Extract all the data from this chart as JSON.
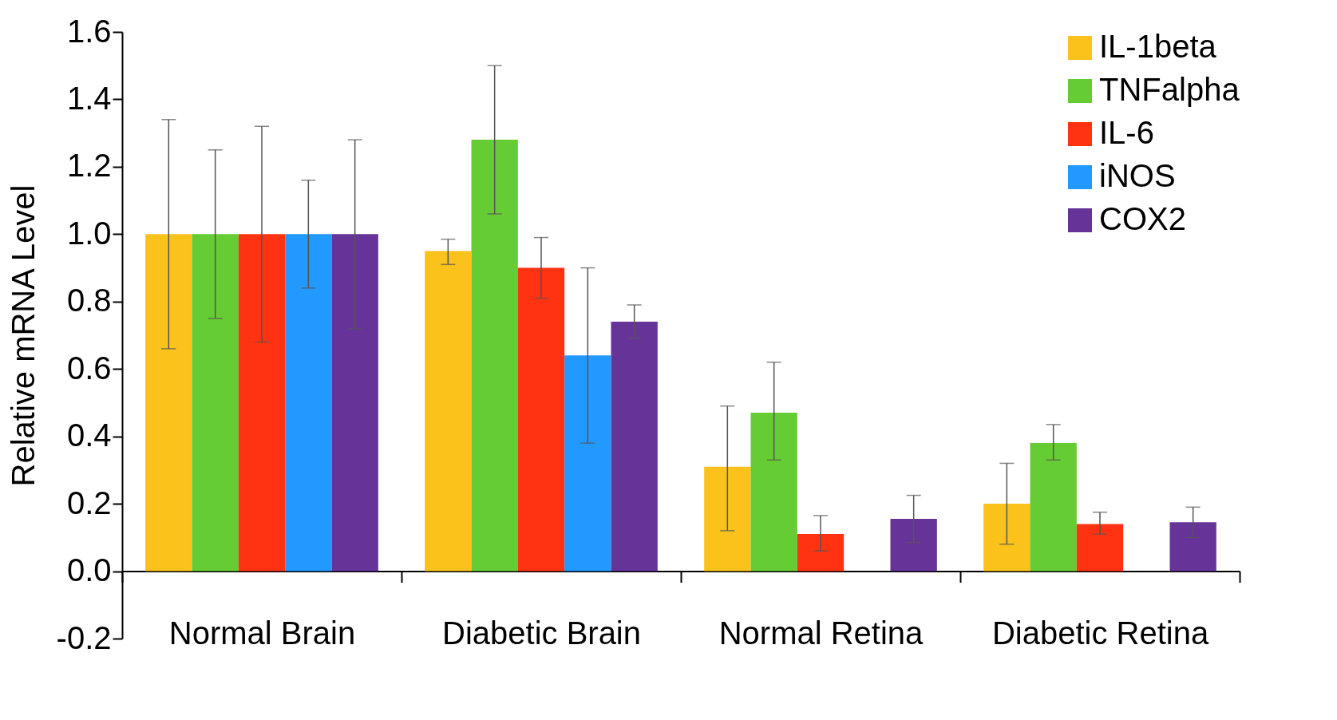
{
  "chart_data": {
    "type": "bar",
    "ylabel": "Relative mRNA Level",
    "categories": [
      "Normal Brain",
      "Diabetic Brain",
      "Normal Retina",
      "Diabetic Retina"
    ],
    "series": [
      {
        "name": "IL-1beta",
        "color": "#fac21a",
        "values": [
          1.0,
          0.95,
          0.31,
          0.2
        ],
        "errors": [
          [
            0.66,
            1.34
          ],
          [
            0.91,
            0.985
          ],
          [
            0.12,
            0.49
          ],
          [
            0.08,
            0.32
          ]
        ]
      },
      {
        "name": "TNFalpha",
        "color": "#66cc33",
        "values": [
          1.0,
          1.28,
          0.47,
          0.38
        ],
        "errors": [
          [
            0.75,
            1.25
          ],
          [
            1.06,
            1.5
          ],
          [
            0.33,
            0.62
          ],
          [
            0.33,
            0.435
          ]
        ]
      },
      {
        "name": "IL-6",
        "color": "#ff3311",
        "values": [
          1.0,
          0.9,
          0.11,
          0.14
        ],
        "errors": [
          [
            0.68,
            1.32
          ],
          [
            0.81,
            0.99
          ],
          [
            0.06,
            0.165
          ],
          [
            0.11,
            0.175
          ]
        ]
      },
      {
        "name": "iNOS",
        "color": "#2299ff",
        "values": [
          1.0,
          0.64,
          0.0,
          0.0
        ],
        "errors": [
          [
            0.84,
            1.16
          ],
          [
            0.38,
            0.9
          ],
          null,
          null
        ]
      },
      {
        "name": "COX2",
        "color": "#663399",
        "values": [
          1.0,
          0.74,
          0.155,
          0.145
        ],
        "errors": [
          [
            0.72,
            1.28
          ],
          [
            0.69,
            0.79
          ],
          [
            0.085,
            0.225
          ],
          [
            0.1,
            0.19
          ]
        ]
      }
    ],
    "ylim": [
      -0.2,
      1.6
    ],
    "yticks": [
      {
        "value": -0.2,
        "label": "-0.2"
      },
      {
        "value": 0,
        "label": "0.0"
      },
      {
        "value": 0.2,
        "label": "0.2"
      },
      {
        "value": 0.4,
        "label": "0.4"
      },
      {
        "value": 0.6,
        "label": "0.6"
      },
      {
        "value": 0.8,
        "label": "0.8"
      },
      {
        "value": 1,
        "label": "1.0"
      },
      {
        "value": 1.2,
        "label": "1.2"
      },
      {
        "value": 1.4,
        "label": "1.4"
      },
      {
        "value": 1.6,
        "label": "1.6"
      }
    ],
    "grid": false,
    "legend": "top right"
  }
}
